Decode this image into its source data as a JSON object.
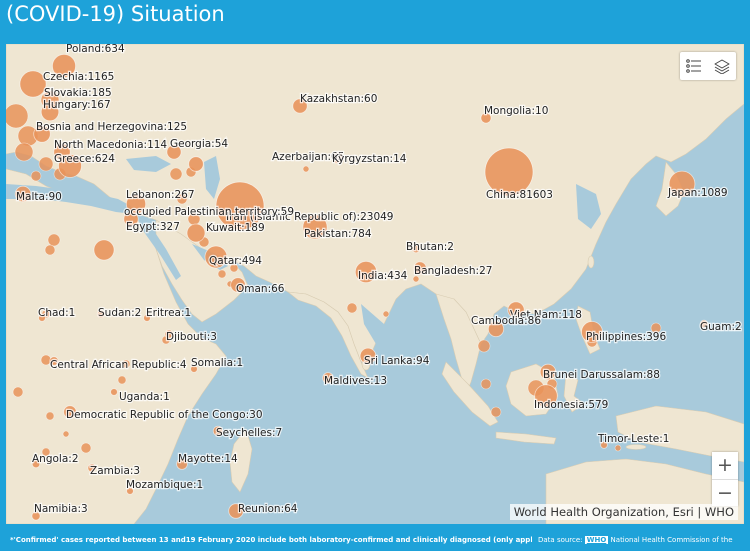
{
  "header": {
    "title": "(COVID-19) Situation"
  },
  "map": {
    "attribution": "World Health Organization, Esri | WHO",
    "bubble_color": "#e8935a",
    "case_locations": [
      {
        "name": "Poland",
        "cases": 634,
        "label": "Poland:634"
      },
      {
        "name": "Czechia",
        "cases": 1165,
        "label": "Czechia:1165"
      },
      {
        "name": "Slovakia",
        "cases": 185,
        "label": "Slovakia:185"
      },
      {
        "name": "Hungary",
        "cases": 167,
        "label": "Hungary:167"
      },
      {
        "name": "Bosnia and Herzegovina",
        "cases": 125,
        "label": "Bosnia and Herzegovina:125"
      },
      {
        "name": "North Macedonia",
        "cases": 114,
        "label": "North Macedonia:114"
      },
      {
        "name": "Greece",
        "cases": 624,
        "label": "Greece:624"
      },
      {
        "name": "Malta",
        "cases": 90,
        "label": "Malta:90"
      },
      {
        "name": "Georgia",
        "cases": 54,
        "label": "Georgia:54"
      },
      {
        "name": "Azerbaijan",
        "cases": 65,
        "label": "Azerbaijan:65"
      },
      {
        "name": "Kazakhstan",
        "cases": 60,
        "label": "Kazakhstan:60"
      },
      {
        "name": "Mongolia",
        "cases": 10,
        "label": "Mongolia:10"
      },
      {
        "name": "Kyrgyzstan",
        "cases": 14,
        "label": "Kyrgyzstan:14"
      },
      {
        "name": "China",
        "cases": 81603,
        "label": "China:81603"
      },
      {
        "name": "Japan",
        "cases": 1089,
        "label": "Japan:1089"
      },
      {
        "name": "Lebanon",
        "cases": 267,
        "label": "Lebanon:267"
      },
      {
        "name": "Iran (Islamic Republic of)",
        "cases": 23049,
        "label": "Iran (Islamic Republic of):23049"
      },
      {
        "name": "occupied Palestinian territory",
        "cases": 59,
        "label": "occupied Palestinian territory:59"
      },
      {
        "name": "Kuwait",
        "cases": 189,
        "label": "Kuwait:189"
      },
      {
        "name": "Pakistan",
        "cases": 784,
        "label": "Pakistan:784"
      },
      {
        "name": "Egypt",
        "cases": 327,
        "label": "Egypt:327"
      },
      {
        "name": "Qatar",
        "cases": 494,
        "label": "Qatar:494"
      },
      {
        "name": "Bhutan",
        "cases": 2,
        "label": "Bhutan:2"
      },
      {
        "name": "India",
        "cases": 434,
        "label": "India:434"
      },
      {
        "name": "Bangladesh",
        "cases": 27,
        "label": "Bangladesh:27"
      },
      {
        "name": "Oman",
        "cases": 66,
        "label": "Oman:66"
      },
      {
        "name": "Chad",
        "cases": 1,
        "label": "Chad:1"
      },
      {
        "name": "Sudan",
        "cases": 2,
        "label": "Sudan:2"
      },
      {
        "name": "Eritrea",
        "cases": 1,
        "label": "Eritrea:1"
      },
      {
        "name": "Djibouti",
        "cases": 3,
        "label": "Djibouti:3"
      },
      {
        "name": "Viet Nam",
        "cases": 118,
        "label": "Viet Nam:118"
      },
      {
        "name": "Cambodia",
        "cases": 86,
        "label": "Cambodia:86"
      },
      {
        "name": "Philippines",
        "cases": 396,
        "label": "Philippines:396"
      },
      {
        "name": "Guam",
        "cases": 2,
        "label": "Guam:2"
      },
      {
        "name": "Central African Republic",
        "cases": 4,
        "label": "Central African Republic:4"
      },
      {
        "name": "Somalia",
        "cases": 1,
        "label": "Somalia:1"
      },
      {
        "name": "Sri Lanka",
        "cases": 94,
        "label": "Sri Lanka:94"
      },
      {
        "name": "Maldives",
        "cases": 13,
        "label": "Maldives:13"
      },
      {
        "name": "Brunei Darussalam",
        "cases": 88,
        "label": "Brunei Darussalam:88"
      },
      {
        "name": "Uganda",
        "cases": 1,
        "label": "Uganda:1"
      },
      {
        "name": "Indonesia",
        "cases": 579,
        "label": "Indonesia:579"
      },
      {
        "name": "Democratic Republic of the Congo",
        "cases": 30,
        "label": "Democratic Republic of the Congo:30"
      },
      {
        "name": "Seychelles",
        "cases": 7,
        "label": "Seychelles:7"
      },
      {
        "name": "Timor-Leste",
        "cases": 1,
        "label": "Timor-Leste:1"
      },
      {
        "name": "Angola",
        "cases": 2,
        "label": "Angola:2"
      },
      {
        "name": "Zambia",
        "cases": 3,
        "label": "Zambia:3"
      },
      {
        "name": "Mayotte",
        "cases": 14,
        "label": "Mayotte:14"
      },
      {
        "name": "Mozambique",
        "cases": 1,
        "label": "Mozambique:1"
      },
      {
        "name": "Reunion",
        "cases": 64,
        "label": "Reunion:64"
      },
      {
        "name": "Namibia",
        "cases": 3,
        "label": "Namibia:3"
      }
    ]
  },
  "toolbar": {
    "legend_icon": "legend-list-icon",
    "layers_icon": "layers-icon"
  },
  "zoom": {
    "in_label": "+",
    "out_label": "−"
  },
  "footer": {
    "note": "*'Confirmed' cases reported between 13 and19 February 2020 include both laboratory-confirmed and clinically diagnosed (only  applicable to Hubei",
    "source_prefix": "Data source: ",
    "source_link": "WHO",
    "source_rest": " National Health Commission of the"
  }
}
